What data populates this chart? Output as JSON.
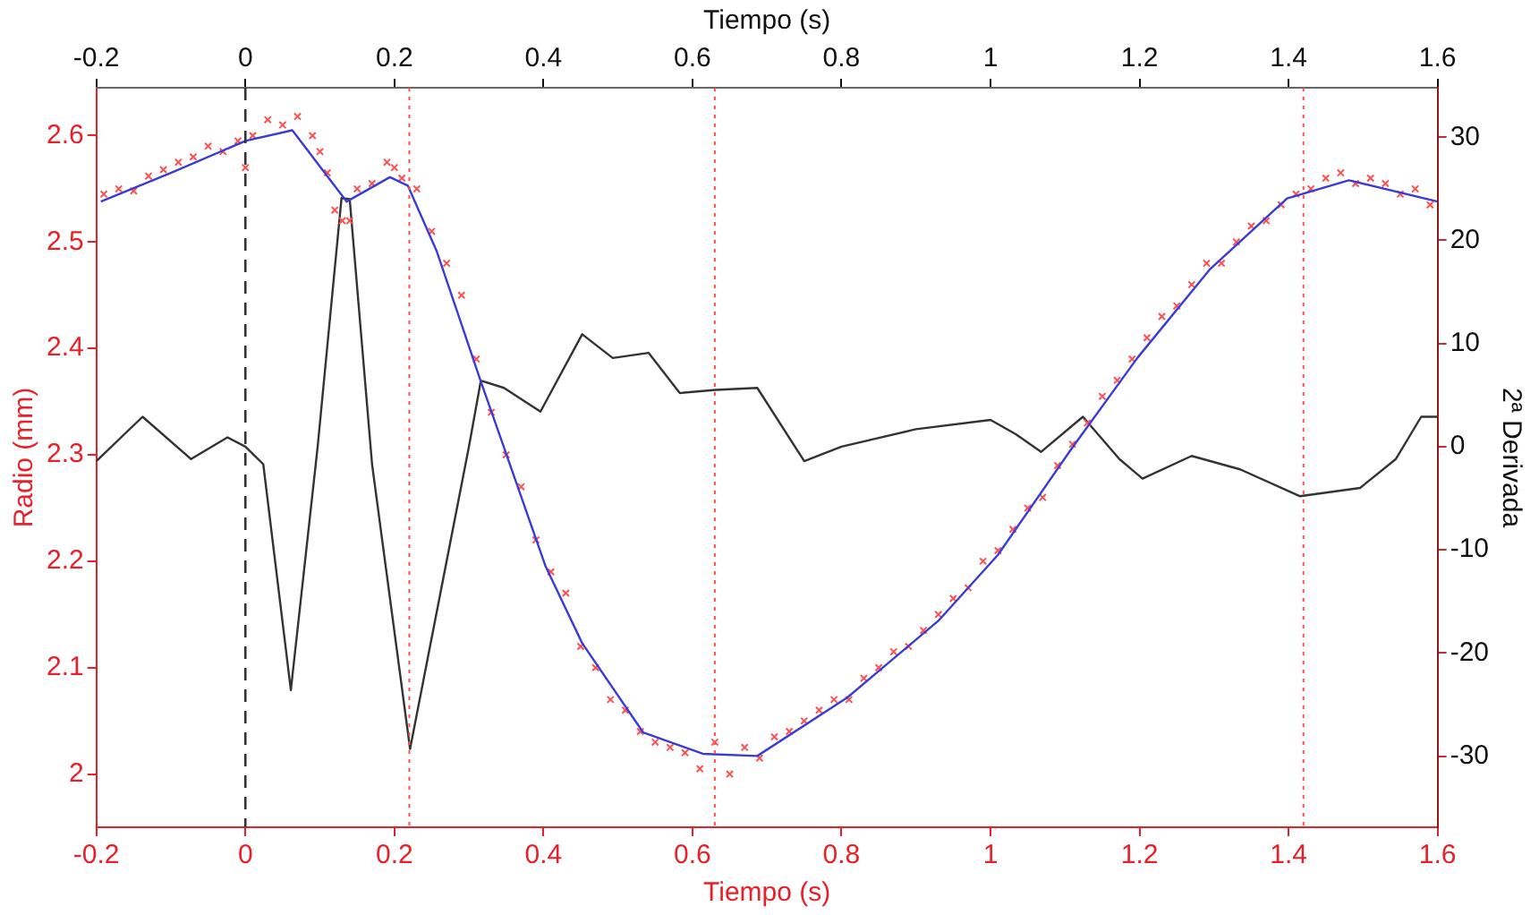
{
  "chart_data": {
    "type": "scatter",
    "xlabel": "Tiempo (s)",
    "x2label": "Tiempo (s)",
    "ylabel": "Radio (mm)",
    "y2label": "2ª Derivada",
    "xlim": [
      -0.2,
      1.6
    ],
    "xticks": [
      -0.2,
      0,
      0.2,
      0.4,
      0.6,
      0.8,
      1,
      1.2,
      1.4,
      1.6
    ],
    "x2lim": [
      -0.2,
      1.6
    ],
    "x2ticks": [
      -0.2,
      0,
      0.2,
      0.4,
      0.6,
      0.8,
      1,
      1.2,
      1.4,
      1.6
    ],
    "ylim": [
      1.95,
      2.645
    ],
    "yticks": [
      2,
      2.1,
      2.2,
      2.3,
      2.4,
      2.5,
      2.6
    ],
    "y2lim": [
      -36.9,
      34.8
    ],
    "y2ticks": [
      -30,
      -20,
      -10,
      0,
      10,
      20,
      30
    ],
    "grid": false,
    "legend": false,
    "series": [
      {
        "color": "#ff5050",
        "marker": "cross",
        "x": [
          -0.19,
          -0.17,
          -0.15,
          -0.13,
          -0.11,
          -0.09,
          -0.07,
          -0.05,
          -0.03,
          -0.01,
          0,
          0.01,
          0.03,
          0.05,
          0.07,
          0.09,
          0.1,
          0.11,
          0.12,
          0.13,
          0.14,
          0.15,
          0.17,
          0.19,
          0.2,
          0.21,
          0.23,
          0.25,
          0.27,
          0.29,
          0.31,
          0.33,
          0.35,
          0.37,
          0.39,
          0.41,
          0.43,
          0.45,
          0.47,
          0.49,
          0.51,
          0.53,
          0.55,
          0.57,
          0.59,
          0.61,
          0.63,
          0.65,
          0.67,
          0.69,
          0.71,
          0.73,
          0.75,
          0.77,
          0.79,
          0.81,
          0.83,
          0.85,
          0.87,
          0.89,
          0.91,
          0.93,
          0.95,
          0.97,
          0.99,
          1.01,
          1.03,
          1.05,
          1.07,
          1.09,
          1.11,
          1.13,
          1.15,
          1.17,
          1.19,
          1.21,
          1.23,
          1.25,
          1.27,
          1.29,
          1.31,
          1.33,
          1.35,
          1.37,
          1.39,
          1.41,
          1.43,
          1.45,
          1.47,
          1.49,
          1.51,
          1.53,
          1.55,
          1.57,
          1.59
        ],
        "values": [
          2.545,
          2.55,
          2.548,
          2.562,
          2.568,
          2.575,
          2.58,
          2.59,
          2.585,
          2.595,
          2.57,
          2.6,
          2.615,
          2.61,
          2.618,
          2.6,
          2.585,
          2.565,
          2.53,
          2.52,
          2.52,
          2.55,
          2.555,
          2.575,
          2.57,
          2.56,
          2.55,
          2.51,
          2.48,
          2.45,
          2.39,
          2.34,
          2.3,
          2.27,
          2.22,
          2.19,
          2.17,
          2.12,
          2.1,
          2.07,
          2.06,
          2.04,
          2.03,
          2.025,
          2.02,
          2.005,
          2.03,
          2.0,
          2.025,
          2.015,
          2.035,
          2.04,
          2.05,
          2.06,
          2.07,
          2.07,
          2.09,
          2.1,
          2.115,
          2.12,
          2.135,
          2.15,
          2.165,
          2.175,
          2.2,
          2.21,
          2.23,
          2.25,
          2.26,
          2.29,
          2.31,
          2.33,
          2.355,
          2.37,
          2.39,
          2.41,
          2.43,
          2.44,
          2.46,
          2.48,
          2.48,
          2.5,
          2.515,
          2.52,
          2.535,
          2.545,
          2.55,
          2.56,
          2.565,
          2.555,
          2.56,
          2.555,
          2.545,
          2.55,
          2.535
        ]
      },
      {
        "type": "line",
        "color": "#3b3bd6",
        "x": [
          -0.194,
          -0.1,
          0,
          0.063,
          0.136,
          0.194,
          0.218,
          0.257,
          0.316,
          0.347,
          0.403,
          0.452,
          0.534,
          0.614,
          0.687,
          0.808,
          0.93,
          1.01,
          1.107,
          1.197,
          1.294,
          1.398,
          1.481,
          1.6
        ],
        "values": [
          2.538,
          2.565,
          2.595,
          2.605,
          2.538,
          2.561,
          2.553,
          2.491,
          2.369,
          2.307,
          2.195,
          2.123,
          2.039,
          2.019,
          2.017,
          2.072,
          2.144,
          2.206,
          2.304,
          2.391,
          2.474,
          2.541,
          2.558,
          2.538
        ]
      },
      {
        "type": "line",
        "color": "#333333",
        "axis": "y2",
        "x": [
          -0.2,
          -0.138,
          -0.073,
          -0.024,
          0,
          0.024,
          0.061,
          0.097,
          0.129,
          0.14,
          0.17,
          0.221,
          0.3,
          0.316,
          0.347,
          0.396,
          0.452,
          0.493,
          0.541,
          0.583,
          0.631,
          0.687,
          0.75,
          0.8,
          0.9,
          1.0,
          1.034,
          1.068,
          1.124,
          1.173,
          1.204,
          1.27,
          1.335,
          1.415,
          1.496,
          1.544,
          1.578,
          1.6
        ],
        "values": [
          -1.4,
          2.9,
          -1.2,
          0.9,
          0,
          -1.7,
          -23.6,
          0,
          24.1,
          24,
          -1.7,
          -29.3,
          0,
          6.4,
          5.7,
          3.4,
          10.9,
          8.6,
          9.1,
          5.2,
          5.5,
          5.7,
          -1.4,
          0,
          1.7,
          2.6,
          1.2,
          -0.5,
          2.9,
          -1.2,
          -3.1,
          -0.9,
          -2.2,
          -4.8,
          -4,
          -1.2,
          2.9,
          2.9
        ]
      }
    ],
    "ref_lines": [
      {
        "axis": "x",
        "value": 0,
        "color": "#333333",
        "line_style": "dashed"
      },
      {
        "axis": "x",
        "value": 0.22,
        "color": "#ff5050",
        "line_style": "dotted"
      },
      {
        "axis": "x",
        "value": 0.63,
        "color": "#ff5050",
        "line_style": "dotted"
      },
      {
        "axis": "x",
        "value": 1.42,
        "color": "#ff5050",
        "line_style": "dotted"
      }
    ]
  }
}
